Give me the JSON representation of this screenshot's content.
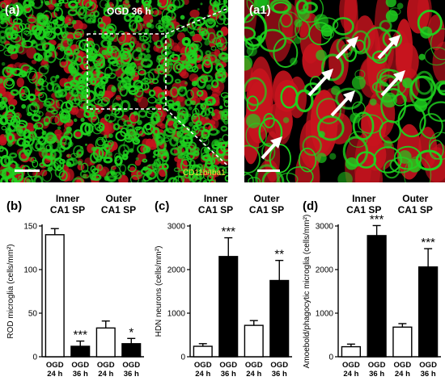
{
  "micrographs": {
    "overview": {
      "panel_letter": "(a)",
      "title": "OGD 36 h",
      "stain_label": "CD11b/Iba1"
    },
    "zoom": {
      "panel_letter": "(a1)",
      "arrow_icon": "white-arrow-icon"
    },
    "colors": {
      "green": "#1fd21f",
      "red": "#c8141e",
      "background": "#000000"
    }
  },
  "chart_data": [
    {
      "type": "bar",
      "panel_letter": "(b)",
      "groups": [
        {
          "label_line1": "Inner",
          "label_line2": "CA1 SP"
        },
        {
          "label_line1": "Outer",
          "label_line2": "CA1 SP"
        }
      ],
      "categories": [
        {
          "line1": "OGD",
          "line2": "24 h"
        },
        {
          "line1": "OGD",
          "line2": "36 h"
        },
        {
          "line1": "OGD",
          "line2": "24 h"
        },
        {
          "line1": "OGD",
          "line2": "36 h"
        }
      ],
      "values": [
        140,
        12,
        33,
        15
      ],
      "errors": [
        7,
        6,
        8,
        6
      ],
      "fills": [
        "#ffffff",
        "#000000",
        "#ffffff",
        "#000000"
      ],
      "significance": [
        "",
        "***",
        "",
        "*"
      ],
      "ylabel": "ROD microglia  (cells/mm²)",
      "ylim": [
        0,
        150
      ],
      "yticks": [
        0,
        50,
        100,
        150
      ]
    },
    {
      "type": "bar",
      "panel_letter": "(c)",
      "groups": [
        {
          "label_line1": "Inner",
          "label_line2": "CA1 SP"
        },
        {
          "label_line1": "Outer",
          "label_line2": "CA1 SP"
        }
      ],
      "categories": [
        {
          "line1": "OGD",
          "line2": "24 h"
        },
        {
          "line1": "OGD",
          "line2": "36 h"
        },
        {
          "line1": "OGD",
          "line2": "24 h"
        },
        {
          "line1": "OGD",
          "line2": "36 h"
        }
      ],
      "values": [
        240,
        2300,
        720,
        1750
      ],
      "errors": [
        60,
        430,
        110,
        460
      ],
      "fills": [
        "#ffffff",
        "#000000",
        "#ffffff",
        "#000000"
      ],
      "significance": [
        "",
        "***",
        "",
        "**"
      ],
      "ylabel": "HDN neurons  (cells/mm²)",
      "ylim": [
        0,
        3000
      ],
      "yticks": [
        0,
        1000,
        2000,
        3000
      ]
    },
    {
      "type": "bar",
      "panel_letter": "(d)",
      "groups": [
        {
          "label_line1": "Inner",
          "label_line2": "CA1 SP"
        },
        {
          "label_line1": "Outer",
          "label_line2": "CA1 SP"
        }
      ],
      "categories": [
        {
          "line1": "OGD",
          "line2": "24 h"
        },
        {
          "line1": "OGD",
          "line2": "36 h"
        },
        {
          "line1": "OGD",
          "line2": "24 h"
        },
        {
          "line1": "OGD",
          "line2": "36 h"
        }
      ],
      "values": [
        230,
        2780,
        680,
        2060
      ],
      "errors": [
        60,
        230,
        80,
        420
      ],
      "fills": [
        "#ffffff",
        "#000000",
        "#ffffff",
        "#000000"
      ],
      "significance": [
        "",
        "***",
        "",
        "***"
      ],
      "ylabel": "Amoebold/phagocytic microglia (cells/mm²)",
      "ylim": [
        0,
        3000
      ],
      "yticks": [
        0,
        1000,
        2000,
        3000
      ]
    }
  ]
}
